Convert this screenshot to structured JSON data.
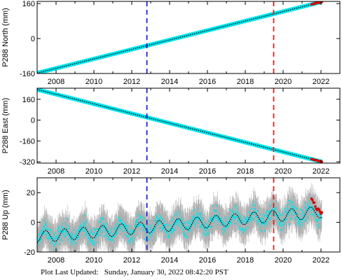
{
  "footer": {
    "label": "Plot Last Updated:",
    "timestamp": "Sunday, January 30, 2022 08:42:20 PST"
  },
  "colors": {
    "raw_points": "#00e5ee",
    "error_bars": "#b0b0b0",
    "model_line": "#000000",
    "recent_points": "#dd0000",
    "event_line_1": "#2222cc",
    "event_line_2": "#dd2222"
  },
  "chart_data": [
    {
      "type": "scatter",
      "ylabel": "P288 North (mm)",
      "xlim": [
        2007.0,
        2023.0
      ],
      "ylim": [
        -160,
        170
      ],
      "yticks": [
        -160,
        0,
        160
      ],
      "xticks": [
        2008,
        2010,
        2012,
        2014,
        2016,
        2018,
        2020,
        2022
      ],
      "grid": false,
      "trend": {
        "x": [
          2007.0,
          2022.05
        ],
        "y": [
          -158,
          168
        ]
      },
      "seasonal_amplitude": 0,
      "scatter_noise": 3,
      "vertical_lines": [
        2012.8,
        2019.5
      ]
    },
    {
      "type": "scatter",
      "ylabel": "P288 East (mm)",
      "xlim": [
        2007.0,
        2023.0
      ],
      "ylim": [
        -330,
        245
      ],
      "yticks": [
        -320,
        -160,
        0,
        160
      ],
      "xticks": [
        2008,
        2010,
        2012,
        2014,
        2016,
        2018,
        2020,
        2022
      ],
      "grid": false,
      "trend": {
        "x": [
          2007.0,
          2022.05
        ],
        "y": [
          235,
          -320
        ]
      },
      "seasonal_amplitude": 0,
      "scatter_noise": 4,
      "vertical_lines": [
        2012.8,
        2019.5
      ]
    },
    {
      "type": "scatter",
      "ylabel": "P288 Up (mm)",
      "xlim": [
        2007.0,
        2023.0
      ],
      "ylim": [
        -20,
        30
      ],
      "yticks": [
        -20,
        0,
        20
      ],
      "xticks": [
        2008,
        2010,
        2012,
        2014,
        2016,
        2018,
        2020,
        2022
      ],
      "grid": false,
      "trend": {
        "x": [
          2007.0,
          2022.05
        ],
        "y": [
          -10,
          7
        ]
      },
      "seasonal_amplitude": 4,
      "scatter_noise": 6,
      "vertical_lines": [
        2012.8,
        2019.5
      ]
    }
  ]
}
